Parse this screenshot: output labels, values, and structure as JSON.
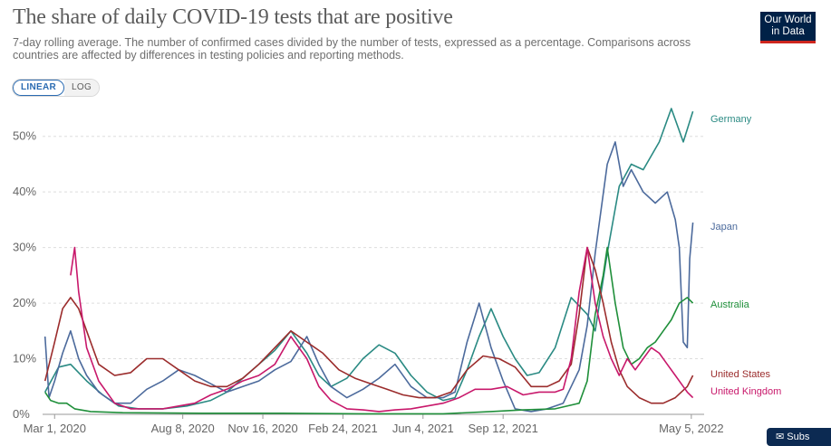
{
  "header": {
    "title": "The share of daily COVID-19 tests that are positive",
    "subtitle": "7-day rolling average. The number of confirmed cases divided by the number of tests, expressed as a percentage. Comparisons across countries are affected by differences in testing policies and reporting methods."
  },
  "logo": {
    "line1": "Our World",
    "line2": "in Data"
  },
  "controls": {
    "linear_label": "LINEAR",
    "log_label": "LOG",
    "selected": "LINEAR"
  },
  "subscribe": {
    "label": "Subs"
  },
  "colors": {
    "Germany": "#2a8a83",
    "Japan": "#4c6a9c",
    "Australia": "#1f8f3a",
    "United States": "#9b2c2c",
    "United Kingdom": "#c8186b"
  },
  "chart_data": {
    "type": "line",
    "title": "The share of daily COVID-19 tests that are positive",
    "xlabel": "",
    "ylabel": "",
    "x_unit": "days since 2020-02-15",
    "xlim": [
      0,
      826
    ],
    "ylim": [
      0,
      55
    ],
    "y_ticks": [
      0,
      10,
      20,
      30,
      40,
      50
    ],
    "y_tick_labels": [
      "0%",
      "10%",
      "20%",
      "30%",
      "40%",
      "50%"
    ],
    "x_ticks": [
      {
        "label": "Mar 1, 2020",
        "day": 15
      },
      {
        "label": "Aug 8, 2020",
        "day": 175
      },
      {
        "label": "Nov 16, 2020",
        "day": 275
      },
      {
        "label": "Feb 24, 2021",
        "day": 375
      },
      {
        "label": "Jun 4, 2021",
        "day": 475
      },
      {
        "label": "Sep 12, 2021",
        "day": 575
      },
      {
        "label": "May 5, 2022",
        "day": 810
      }
    ],
    "grid": true,
    "series": [
      {
        "name": "Germany",
        "x": [
          3,
          20,
          35,
          55,
          75,
          95,
          120,
          150,
          180,
          210,
          230,
          250,
          270,
          290,
          310,
          330,
          345,
          360,
          380,
          400,
          420,
          440,
          460,
          480,
          500,
          515,
          530,
          545,
          560,
          575,
          590,
          605,
          620,
          640,
          660,
          680,
          690,
          705,
          720,
          735,
          750,
          770,
          785,
          800,
          812
        ],
        "y": [
          4,
          8.5,
          9,
          6,
          3.5,
          1.5,
          1,
          1,
          1.5,
          2.5,
          4,
          6.5,
          9,
          11.5,
          15,
          11,
          7,
          5,
          6.5,
          10,
          12.5,
          11,
          7,
          4,
          2.5,
          3,
          8,
          14,
          19,
          14,
          10,
          7,
          7.5,
          12,
          21,
          18,
          15,
          29,
          41,
          45,
          44,
          49,
          55,
          49,
          54.5
        ]
      },
      {
        "name": "Japan",
        "x": [
          3,
          8,
          15,
          25,
          35,
          45,
          55,
          70,
          90,
          110,
          130,
          150,
          170,
          190,
          210,
          230,
          250,
          270,
          290,
          310,
          330,
          345,
          360,
          380,
          400,
          420,
          440,
          460,
          480,
          500,
          515,
          530,
          545,
          560,
          575,
          590,
          610,
          630,
          650,
          670,
          680,
          690,
          705,
          715,
          725,
          735,
          750,
          765,
          780,
          790,
          795,
          800,
          805,
          808,
          812
        ],
        "y": [
          14,
          3,
          6,
          11,
          15,
          10,
          7,
          4,
          2,
          2,
          4.5,
          6,
          8,
          7,
          5.5,
          4,
          5,
          6,
          8,
          9.5,
          14,
          9,
          5,
          3,
          4.5,
          6.5,
          9,
          5,
          3,
          3,
          4,
          13,
          20,
          12,
          6,
          1,
          0.5,
          1,
          2,
          8,
          16,
          29,
          45,
          49,
          41,
          44,
          40,
          38,
          40,
          35,
          30,
          13,
          12,
          28,
          34.5
        ]
      },
      {
        "name": "Australia",
        "x": [
          3,
          10,
          20,
          30,
          40,
          60,
          100,
          200,
          300,
          400,
          500,
          560,
          600,
          640,
          670,
          680,
          690,
          700,
          705,
          715,
          725,
          735,
          745,
          755,
          765,
          775,
          785,
          795,
          805,
          812
        ],
        "y": [
          4,
          2.5,
          2,
          2,
          1,
          0.5,
          0.3,
          0.2,
          0.2,
          0.1,
          0.1,
          0.5,
          0.8,
          1,
          2,
          6,
          18,
          25,
          30,
          20,
          12,
          9,
          10,
          12,
          13,
          15,
          17,
          20,
          21,
          20
        ]
      },
      {
        "name": "United States",
        "x": [
          3,
          15,
          25,
          35,
          45,
          55,
          70,
          90,
          110,
          130,
          150,
          170,
          190,
          210,
          230,
          250,
          270,
          290,
          310,
          330,
          350,
          370,
          390,
          410,
          430,
          450,
          470,
          490,
          510,
          530,
          550,
          570,
          590,
          610,
          630,
          645,
          660,
          670,
          680,
          690,
          700,
          710,
          720,
          730,
          745,
          760,
          775,
          790,
          805,
          812
        ],
        "y": [
          6,
          13,
          19,
          21,
          19,
          15,
          9,
          7,
          7.5,
          10,
          10,
          8,
          6,
          5,
          5,
          6.5,
          9,
          12,
          15,
          13,
          11,
          8,
          6.5,
          5.5,
          4.5,
          3.5,
          3,
          3,
          4,
          8,
          10.5,
          10,
          8.5,
          5,
          5,
          6,
          9,
          18,
          30,
          26,
          20,
          13,
          8,
          5,
          3,
          2,
          2,
          3,
          5,
          7
        ]
      },
      {
        "name": "United Kingdom",
        "x": [
          35,
          40,
          45,
          55,
          70,
          90,
          110,
          130,
          150,
          170,
          190,
          210,
          230,
          250,
          270,
          290,
          310,
          330,
          345,
          360,
          380,
          400,
          420,
          440,
          460,
          480,
          500,
          520,
          540,
          560,
          580,
          600,
          620,
          640,
          650,
          660,
          670,
          680,
          690,
          700,
          710,
          720,
          730,
          740,
          750,
          760,
          770,
          780,
          790,
          800,
          805,
          812
        ],
        "y": [
          25,
          30,
          22,
          12,
          6,
          2,
          1,
          1,
          1,
          1.5,
          2,
          3.5,
          4.5,
          6,
          7,
          9,
          14,
          10,
          5,
          2.5,
          1,
          0.8,
          0.5,
          0.8,
          1,
          1.5,
          2,
          3,
          4.5,
          4.5,
          5,
          3.5,
          4,
          4,
          4.5,
          10,
          22,
          30,
          20,
          14,
          10,
          7,
          10,
          8,
          10,
          12,
          11,
          9,
          7,
          5,
          4,
          3
        ]
      }
    ],
    "series_labels": [
      "Germany",
      "Japan",
      "Australia",
      "United States",
      "United Kingdom"
    ]
  }
}
